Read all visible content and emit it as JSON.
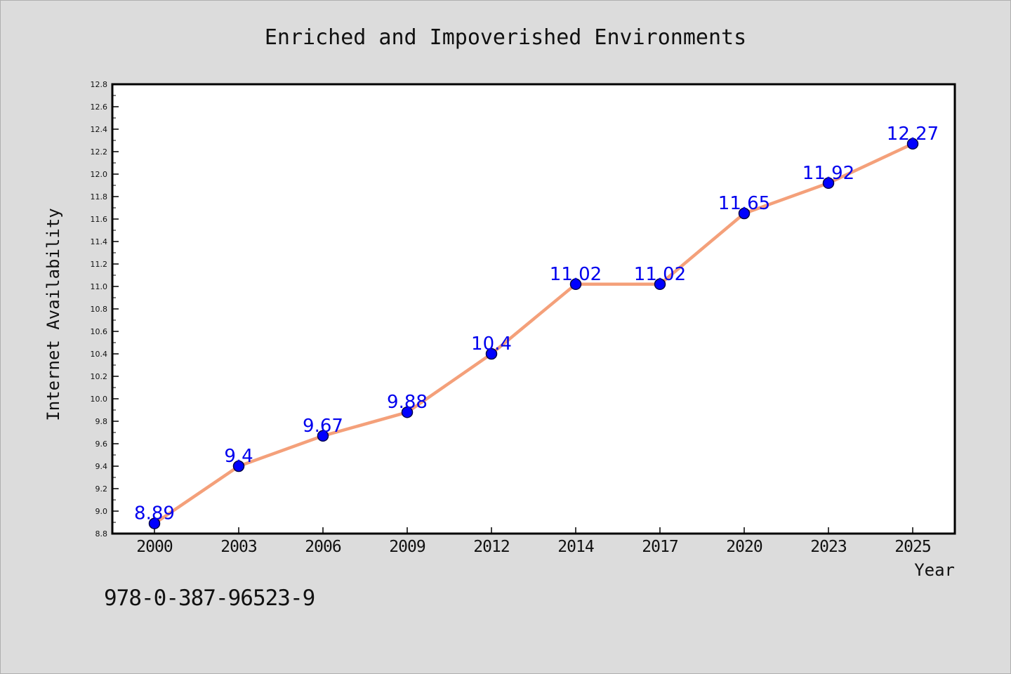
{
  "chart_data": {
    "type": "line",
    "title": "Enriched and Impoverished Environments",
    "xlabel": "Year",
    "ylabel": "Internet Availability",
    "categories": [
      "2000",
      "2003",
      "2006",
      "2009",
      "2012",
      "2014",
      "2017",
      "2020",
      "2023",
      "2025"
    ],
    "series": [
      {
        "values": [
          8.89,
          9.4,
          9.67,
          9.88,
          10.4,
          11.02,
          11.02,
          11.65,
          11.92,
          12.27
        ],
        "data_labels": [
          "8.89",
          "9.4",
          "9.67",
          "9.88",
          "10.4",
          "11.02",
          "11.02",
          "11.65",
          "11.92",
          "12.27"
        ],
        "line_color": "#f4a07a",
        "marker_color": "#0000ff",
        "label_color": "#0000ee"
      }
    ],
    "ylim": [
      8.8,
      12.8
    ],
    "yticks": [
      "8.8",
      "9.0",
      "9.2",
      "9.4",
      "9.6",
      "9.8",
      "10.0",
      "10.2",
      "10.4",
      "10.6",
      "10.8",
      "11.0",
      "11.2",
      "11.4",
      "11.6",
      "11.8",
      "12.0",
      "12.2",
      "12.4",
      "12.6",
      "12.8"
    ],
    "grid": false,
    "legend": "none"
  },
  "footer": {
    "code": "978-0-387-96523-9"
  },
  "colors": {
    "background": "#dcdcdc",
    "plot_area": "#ffffff",
    "axis": "#000000"
  }
}
